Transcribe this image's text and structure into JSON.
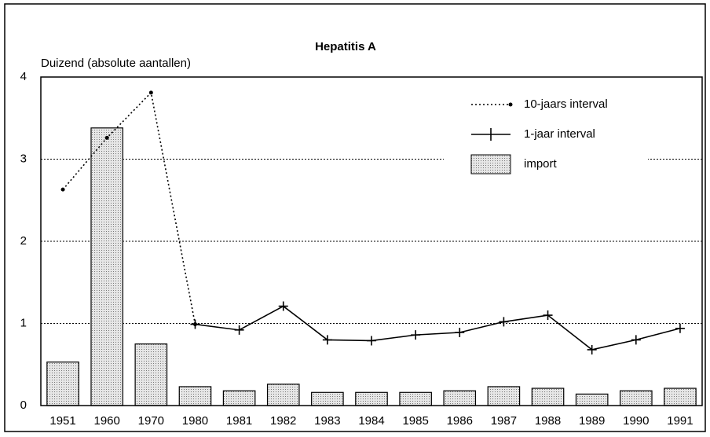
{
  "chart_data": {
    "type": "combo",
    "title": "Hepatitis A",
    "y_label": "Duizend (absolute aantallen)",
    "categories": [
      "1951",
      "1960",
      "1970",
      "1980",
      "1981",
      "1982",
      "1983",
      "1984",
      "1985",
      "1986",
      "1987",
      "1988",
      "1989",
      "1990",
      "1991"
    ],
    "series": [
      {
        "name": "10-jaars interval",
        "type": "line",
        "line_style": "dotted",
        "marker": "dot",
        "color": "#000000",
        "values": [
          2.63,
          3.26,
          3.81,
          0.99,
          null,
          null,
          null,
          null,
          null,
          null,
          null,
          null,
          null,
          null,
          null
        ]
      },
      {
        "name": "1-jaar interval",
        "type": "line",
        "line_style": "solid",
        "marker": "plus",
        "color": "#000000",
        "values": [
          null,
          null,
          null,
          0.99,
          0.92,
          1.21,
          0.8,
          0.79,
          0.86,
          0.89,
          1.02,
          1.1,
          0.68,
          0.8,
          0.94
        ]
      },
      {
        "name": "import",
        "type": "bar",
        "color": "#c8c8c8",
        "values": [
          0.53,
          3.38,
          0.75,
          0.23,
          0.18,
          0.26,
          0.16,
          0.16,
          0.16,
          0.18,
          0.23,
          0.21,
          0.14,
          0.18,
          0.21
        ]
      }
    ],
    "ylim": [
      0,
      4
    ],
    "yticks": [
      0,
      1,
      2,
      3,
      4
    ],
    "grid": true,
    "legend": "top-right"
  }
}
